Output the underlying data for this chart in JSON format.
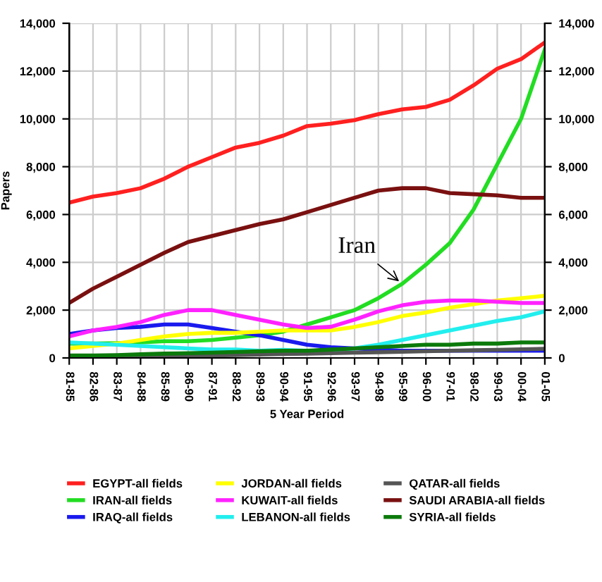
{
  "chart_data": {
    "type": "line",
    "xlabel": "5 Year Period",
    "ylabel": "Papers",
    "categories": [
      "81-85",
      "82-86",
      "83-87",
      "84-88",
      "85-89",
      "86-90",
      "87-91",
      "88-92",
      "89-93",
      "90-94",
      "91-95",
      "92-96",
      "93-97",
      "94-98",
      "95-99",
      "96-00",
      "97-01",
      "98-02",
      "99-03",
      "00-04",
      "01-05"
    ],
    "series": [
      {
        "name": "EGYPT-all fields",
        "color": "#ff2020",
        "values": [
          6500,
          6750,
          6900,
          7100,
          7500,
          8000,
          8400,
          8800,
          9000,
          9300,
          9700,
          9800,
          9950,
          10200,
          10400,
          10500,
          10800,
          11400,
          12100,
          12500,
          13200
        ]
      },
      {
        "name": "IRAN-all fields",
        "color": "#22dd22",
        "values": [
          600,
          600,
          620,
          650,
          700,
          700,
          750,
          850,
          950,
          1100,
          1400,
          1700,
          2000,
          2500,
          3100,
          3900,
          4800,
          6200,
          8100,
          10000,
          12900
        ]
      },
      {
        "name": "IRAQ-all fields",
        "color": "#1a1aee",
        "values": [
          1000,
          1150,
          1250,
          1300,
          1400,
          1400,
          1250,
          1100,
          950,
          750,
          550,
          450,
          400,
          350,
          300,
          300,
          300,
          300,
          300,
          300,
          300
        ]
      },
      {
        "name": "JORDAN-all fields",
        "color": "#ffff00",
        "values": [
          400,
          500,
          600,
          750,
          900,
          1000,
          1050,
          1050,
          1100,
          1150,
          1150,
          1150,
          1300,
          1500,
          1750,
          1900,
          2100,
          2250,
          2400,
          2500,
          2600
        ]
      },
      {
        "name": "KUWAIT-all fields",
        "color": "#ff22ff",
        "values": [
          900,
          1150,
          1300,
          1500,
          1800,
          2000,
          2000,
          1800,
          1600,
          1400,
          1250,
          1300,
          1600,
          1950,
          2200,
          2350,
          2400,
          2400,
          2350,
          2300,
          2300
        ]
      },
      {
        "name": "LEBANON-all fields",
        "color": "#22eeee",
        "values": [
          650,
          600,
          550,
          500,
          450,
          400,
          350,
          350,
          300,
          340,
          300,
          300,
          400,
          550,
          750,
          950,
          1150,
          1350,
          1550,
          1700,
          1950
        ]
      },
      {
        "name": "QATAR-all fields",
        "color": "#555555",
        "values": [
          20,
          30,
          40,
          50,
          60,
          80,
          100,
          120,
          140,
          160,
          180,
          200,
          220,
          240,
          260,
          280,
          300,
          320,
          340,
          360,
          380
        ]
      },
      {
        "name": "SAUDI ARABIA-all fields",
        "color": "#7a1010",
        "values": [
          2300,
          2900,
          3400,
          3900,
          4400,
          4850,
          5100,
          5350,
          5600,
          5800,
          6100,
          6400,
          6700,
          7000,
          7100,
          7100,
          6900,
          6850,
          6800,
          6700,
          6700
        ]
      },
      {
        "name": "SYRIA-all fields",
        "color": "#0b7a0b",
        "values": [
          100,
          100,
          120,
          150,
          180,
          200,
          220,
          250,
          280,
          300,
          300,
          350,
          400,
          450,
          500,
          550,
          550,
          600,
          600,
          650,
          650
        ]
      }
    ],
    "ylim": [
      0,
      14000
    ],
    "yticks": [
      {
        "value": 0,
        "label": "0"
      },
      {
        "value": 2000,
        "label": "2,000"
      },
      {
        "value": 4000,
        "label": "4,000"
      },
      {
        "value": 6000,
        "label": "6,000"
      },
      {
        "value": 8000,
        "label": "8,000"
      },
      {
        "value": 10000,
        "label": "10,000"
      },
      {
        "value": 12000,
        "label": "12,000"
      },
      {
        "value": 14000,
        "label": "14,000"
      }
    ],
    "y2lim": [
      0,
      14000
    ],
    "y2ticks": [
      {
        "value": 0,
        "label": "0"
      },
      {
        "value": 2000,
        "label": "2,000"
      },
      {
        "value": 4000,
        "label": "4,000"
      },
      {
        "value": 6000,
        "label": "6,000"
      },
      {
        "value": 8000,
        "label": "8,000"
      },
      {
        "value": 10000,
        "label": "10,000"
      },
      {
        "value": 12000,
        "label": "12,000"
      },
      {
        "value": 14000,
        "label": "14,000"
      }
    ],
    "annotations": [
      {
        "text": "Iran",
        "x": "95-99",
        "y": 3100
      }
    ],
    "grid": true,
    "legend": "bottom",
    "marker": "none",
    "line_style": "solid"
  }
}
